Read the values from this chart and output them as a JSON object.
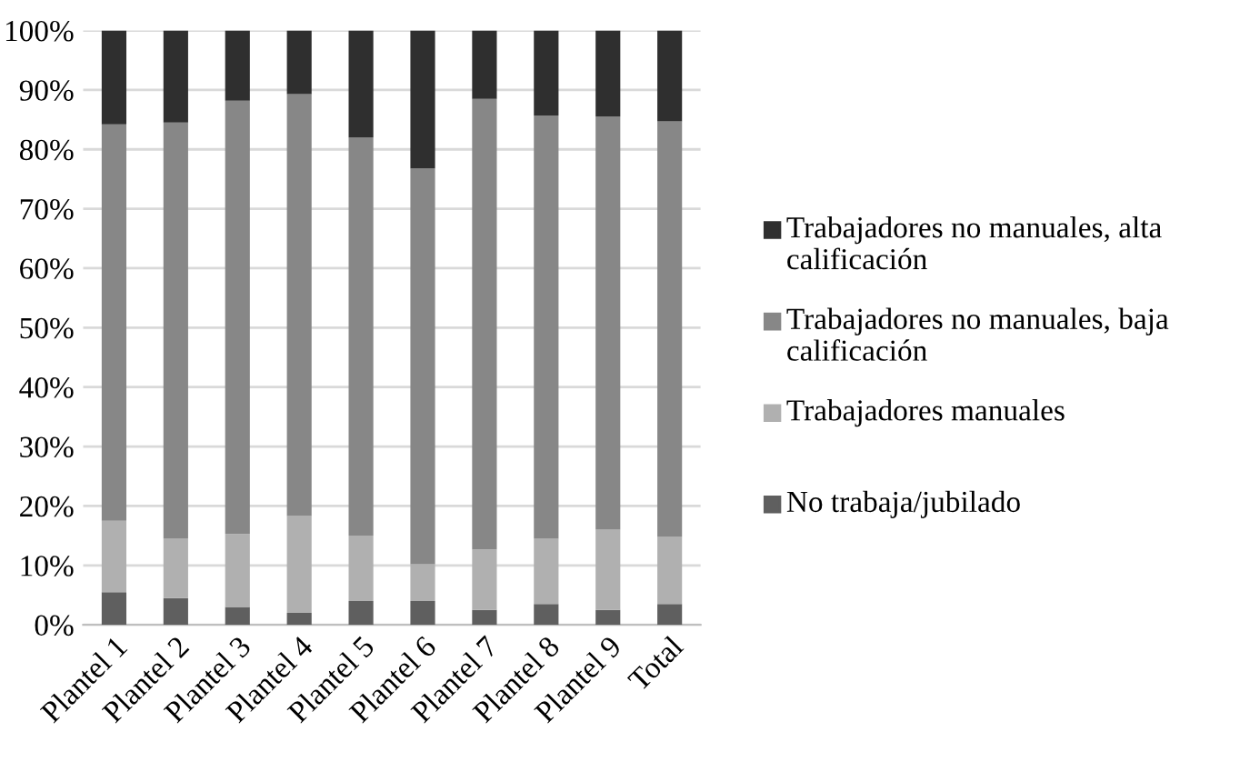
{
  "chart_data": {
    "type": "bar",
    "stacked": true,
    "categories": [
      "Plantel 1",
      "Plantel 2",
      "Plantel 3",
      "Plantel 4",
      "Plantel 5",
      "Plantel 6",
      "Plantel 7",
      "Plantel 8",
      "Plantel 9",
      "Total"
    ],
    "series": [
      {
        "name": "No trabaja/jubilado",
        "color": "#5f5f5f",
        "values": [
          5.5,
          4.5,
          3,
          2,
          4,
          4,
          2.5,
          3.5,
          2.5,
          3.5
        ]
      },
      {
        "name": "Trabajadores manuales",
        "color": "#b0b0b0",
        "values": [
          12,
          10,
          12.3,
          16.3,
          11,
          6.2,
          10.2,
          11,
          13.5,
          11.3
        ]
      },
      {
        "name": "Trabajadores no manuales, baja calificación",
        "color": "#878787",
        "values": [
          66.7,
          70,
          72.9,
          71,
          67,
          66.6,
          75.8,
          71.2,
          69.5,
          69.9
        ]
      },
      {
        "name": "Trabajadores no manuales, alta calificación",
        "color": "#2f2f2f",
        "values": [
          15.8,
          15.5,
          11.8,
          10.7,
          18,
          23.2,
          11.5,
          14.3,
          14.5,
          15.3
        ]
      }
    ],
    "ylim": [
      0,
      100
    ],
    "yticks": [
      {
        "value": 0,
        "label": "0%"
      },
      {
        "value": 10,
        "label": "10%"
      },
      {
        "value": 20,
        "label": "20%"
      },
      {
        "value": 30,
        "label": "30%"
      },
      {
        "value": 40,
        "label": "40%"
      },
      {
        "value": 50,
        "label": "50%"
      },
      {
        "value": 60,
        "label": "60%"
      },
      {
        "value": 70,
        "label": "70%"
      },
      {
        "value": 80,
        "label": "80%"
      },
      {
        "value": 90,
        "label": "90%"
      },
      {
        "value": 100,
        "label": "100%"
      }
    ],
    "grid": "y",
    "legend": "right"
  }
}
